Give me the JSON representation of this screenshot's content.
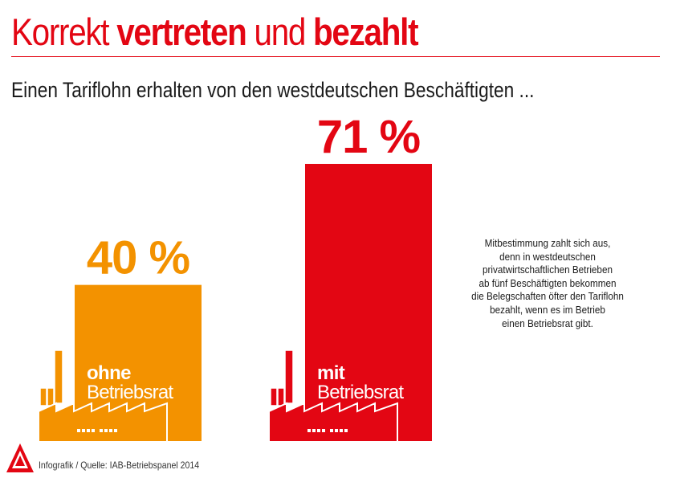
{
  "title": {
    "normal_1": "Korrekt ",
    "bold_1": "vertreten",
    "normal_2": " und ",
    "bold_2": "bezahlt"
  },
  "subtitle": "Einen Tariflohn erhalten von den westdeutschen Beschäftigten ...",
  "chart_data": {
    "type": "bar",
    "categories": [
      "ohne Betriebsrat",
      "mit Betriebsrat"
    ],
    "values": [
      40,
      71
    ],
    "unit": "%",
    "value_labels": [
      "40 %",
      "71 %"
    ],
    "bar_labels": [
      {
        "line1": "ohne",
        "line2": "Betriebsrat"
      },
      {
        "line1": "mit",
        "line2": "Betriebsrat"
      }
    ],
    "colors": [
      "#f39200",
      "#e30613"
    ],
    "ylim": [
      0,
      100
    ],
    "grid": false
  },
  "note_lines": [
    "Mitbestimmung zahlt sich aus,",
    "denn in westdeutschen",
    "privatwirtschaftlichen Betrieben",
    "ab fünf Beschäftigten bekommen",
    "die Belegschaften öfter den Tariflohn",
    "bezahlt, wenn es im Betrieb",
    "einen Betriebsrat gibt."
  ],
  "source": "Infografik / Quelle: IAB-Betriebspanel 2014",
  "logo_text": "IG Metall",
  "icons": [
    "factory-icon",
    "ig-metall-logo-icon"
  ],
  "colors": {
    "accent": "#e30613",
    "orange": "#f39200",
    "text": "#1a1a1a"
  }
}
